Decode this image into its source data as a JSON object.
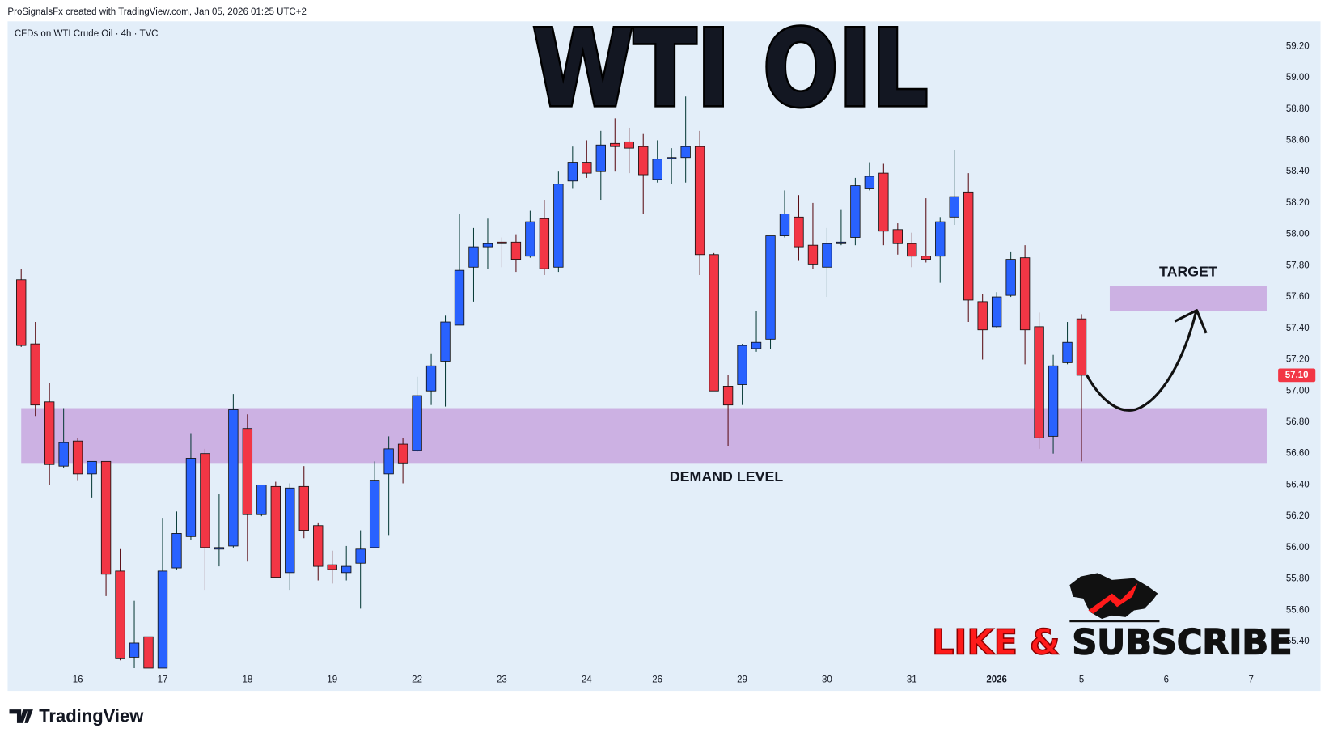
{
  "header": {
    "attribution": "ProSignalsFx created with TradingView.com, Jan 05, 2026 01:25 UTC+2"
  },
  "footer": {
    "brand": "TradingView"
  },
  "cta": [
    "LIKE &",
    "SUBSCRIBE"
  ],
  "chart_data": {
    "type": "candlestick",
    "symbol": "CFDs on WTI Crude Oil · 4h · TVC",
    "title_parts": [
      {
        "text": "WTI",
        "color": "#ff1a1a"
      },
      {
        "text": "OIL",
        "color": "#000000"
      }
    ],
    "x": [
      0,
      1,
      2,
      3,
      4,
      5,
      6,
      7,
      8,
      9,
      10,
      11,
      12,
      13,
      14,
      15,
      16,
      17,
      18,
      19,
      20,
      21,
      22,
      23,
      24,
      25,
      26,
      27,
      28,
      29,
      30,
      31,
      32,
      33,
      34,
      35,
      36,
      37,
      38,
      39,
      40,
      41,
      42,
      43,
      44,
      45,
      46,
      47,
      48,
      49,
      50,
      51,
      52,
      53,
      54,
      55,
      56,
      57,
      58,
      59,
      60,
      61,
      62,
      63,
      64,
      65,
      66,
      67,
      68,
      69,
      70,
      71,
      72,
      73,
      74,
      75
    ],
    "open": [
      57.71,
      57.3,
      56.93,
      56.52,
      56.68,
      56.47,
      56.55,
      55.85,
      55.3,
      55.43,
      55.23,
      55.87,
      56.07,
      56.6,
      55.99,
      56.01,
      56.76,
      56.21,
      56.39,
      55.84,
      56.39,
      56.14,
      55.89,
      55.84,
      55.9,
      56.0,
      56.47,
      56.66,
      56.62,
      57.0,
      57.19,
      57.42,
      57.79,
      57.92,
      57.95,
      57.95,
      57.86,
      58.1,
      57.79,
      58.34,
      58.46,
      58.4,
      58.58,
      58.59,
      58.56,
      58.35,
      58.49,
      58.49,
      58.56,
      57.87,
      57.03,
      57.04,
      57.27,
      57.33,
      57.99,
      58.11,
      57.93,
      57.79,
      57.94,
      57.98,
      58.29,
      58.39,
      58.03,
      57.94,
      57.86,
      57.86,
      58.11,
      58.27,
      57.57,
      57.41,
      57.61,
      57.85,
      57.41,
      56.71,
      57.18,
      57.46
    ],
    "high": [
      57.78,
      57.44,
      57.05,
      56.89,
      56.7,
      56.55,
      56.55,
      55.99,
      55.66,
      55.43,
      56.19,
      56.23,
      56.73,
      56.63,
      56.34,
      56.98,
      56.85,
      56.4,
      56.42,
      56.41,
      56.52,
      56.16,
      55.98,
      56.01,
      56.11,
      56.55,
      56.71,
      56.7,
      57.09,
      57.24,
      57.48,
      58.13,
      58.04,
      58.1,
      57.98,
      58.0,
      58.15,
      58.22,
      58.4,
      58.56,
      58.6,
      58.66,
      58.74,
      58.68,
      58.64,
      58.6,
      58.55,
      58.88,
      58.66,
      57.88,
      57.1,
      57.3,
      57.51,
      57.99,
      58.28,
      58.25,
      58.2,
      58.04,
      58.16,
      58.36,
      58.46,
      58.45,
      58.07,
      58.01,
      58.23,
      58.11,
      58.54,
      58.39,
      57.62,
      57.63,
      57.89,
      57.93,
      57.5,
      57.23,
      57.44,
      57.49
    ],
    "low": [
      57.28,
      56.84,
      56.4,
      56.51,
      56.43,
      56.32,
      55.69,
      55.28,
      55.23,
      55.23,
      55.23,
      55.86,
      56.05,
      55.73,
      55.88,
      56.0,
      55.91,
      56.2,
      55.81,
      55.73,
      56.06,
      55.79,
      55.77,
      55.79,
      55.61,
      56.0,
      56.08,
      56.41,
      56.61,
      56.91,
      56.9,
      57.42,
      57.57,
      57.78,
      57.79,
      57.76,
      57.85,
      57.74,
      57.76,
      58.29,
      58.36,
      58.22,
      58.4,
      58.39,
      58.13,
      58.33,
      58.32,
      58.33,
      57.74,
      57.0,
      56.65,
      56.91,
      57.25,
      57.27,
      57.98,
      57.83,
      57.78,
      57.6,
      57.93,
      57.93,
      58.28,
      57.93,
      57.87,
      57.79,
      57.82,
      57.69,
      58.06,
      57.44,
      57.2,
      57.4,
      57.6,
      57.17,
      56.63,
      56.6,
      57.17,
      56.55
    ],
    "close": [
      57.29,
      56.91,
      56.53,
      56.67,
      56.47,
      56.55,
      55.83,
      55.29,
      55.39,
      55.23,
      55.85,
      56.09,
      56.57,
      56.0,
      56.0,
      56.88,
      56.21,
      56.4,
      55.81,
      56.38,
      56.11,
      55.88,
      55.86,
      55.88,
      55.99,
      56.43,
      56.63,
      56.54,
      56.97,
      57.16,
      57.44,
      57.77,
      57.92,
      57.94,
      57.94,
      57.84,
      58.08,
      57.78,
      58.32,
      58.46,
      58.39,
      58.57,
      58.56,
      58.55,
      58.38,
      58.48,
      58.49,
      58.56,
      57.87,
      57.0,
      56.91,
      57.29,
      57.31,
      57.99,
      58.13,
      57.92,
      57.81,
      57.94,
      57.95,
      58.31,
      58.37,
      58.02,
      57.94,
      57.86,
      57.84,
      58.08,
      58.24,
      57.58,
      57.39,
      57.6,
      57.84,
      57.39,
      56.7,
      57.16,
      57.31,
      57.1
    ],
    "colors": {
      "up": "#2962ff",
      "down": "#f23645"
    },
    "xlim": [
      -0.96,
      88.43
    ],
    "ylim": [
      55.22,
      59.36
    ],
    "xticks": [
      {
        "value": 4,
        "label": "16"
      },
      {
        "value": 10,
        "label": "17"
      },
      {
        "value": 16,
        "label": "18"
      },
      {
        "value": 22,
        "label": "19"
      },
      {
        "value": 28,
        "label": "22"
      },
      {
        "value": 34,
        "label": "23"
      },
      {
        "value": 40,
        "label": "24"
      },
      {
        "value": 45,
        "label": "26"
      },
      {
        "value": 51,
        "label": "29"
      },
      {
        "value": 57,
        "label": "30"
      },
      {
        "value": 63,
        "label": "31"
      },
      {
        "value": 69,
        "label": "2026"
      },
      {
        "value": 75,
        "label": "5"
      },
      {
        "value": 81,
        "label": "6"
      },
      {
        "value": 87,
        "label": "7"
      }
    ],
    "yticks": [
      {
        "value": 55.4,
        "label": "55.40"
      },
      {
        "value": 55.6,
        "label": "55.60"
      },
      {
        "value": 55.8,
        "label": "55.80"
      },
      {
        "value": 56,
        "label": "56.00"
      },
      {
        "value": 56.2,
        "label": "56.20"
      },
      {
        "value": 56.4,
        "label": "56.40"
      },
      {
        "value": 56.6,
        "label": "56.60"
      },
      {
        "value": 56.8,
        "label": "56.80"
      },
      {
        "value": 57,
        "label": "57.00"
      },
      {
        "value": 57.2,
        "label": "57.20"
      },
      {
        "value": 57.4,
        "label": "57.40"
      },
      {
        "value": 57.6,
        "label": "57.60"
      },
      {
        "value": 57.8,
        "label": "57.80"
      },
      {
        "value": 58,
        "label": "58.00"
      },
      {
        "value": 58.2,
        "label": "58.20"
      },
      {
        "value": 58.4,
        "label": "58.40"
      },
      {
        "value": 58.6,
        "label": "58.60"
      },
      {
        "value": 58.8,
        "label": "58.80"
      },
      {
        "value": 59,
        "label": "59.00"
      },
      {
        "value": 59.2,
        "label": "59.20"
      }
    ],
    "grid": false,
    "current_price": {
      "value": 57.1,
      "label": "57.10",
      "color": "#f23645"
    },
    "zones": [
      {
        "label": "DEMAND LEVEL",
        "y": [
          56.54,
          56.89
        ],
        "x": [
          0,
          88.1
        ],
        "color": "#c9aae0"
      },
      {
        "label": "TARGET",
        "y": [
          57.51,
          57.67
        ],
        "x": [
          77,
          88.1
        ],
        "color": "#c9aae0"
      }
    ]
  }
}
